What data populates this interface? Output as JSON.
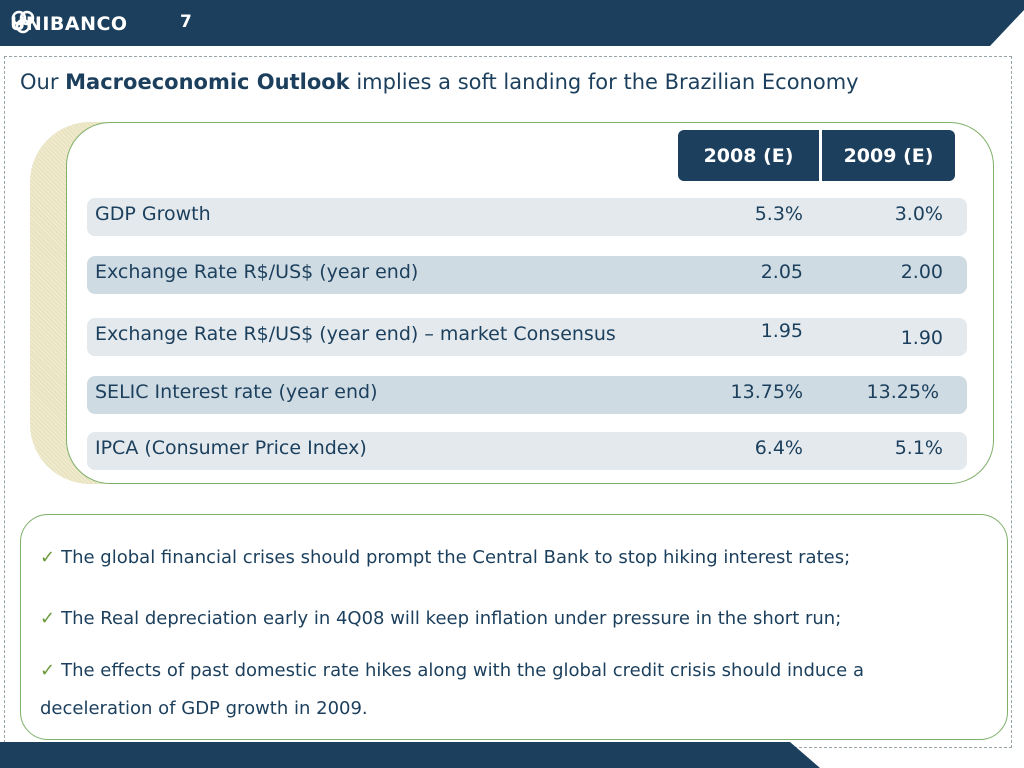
{
  "header": {
    "brand": "UNIBANCO",
    "page_number": "7",
    "color": "#1b3f5c"
  },
  "title": {
    "prefix": "Our ",
    "bold": "Macroeconomic Outlook",
    "suffix": " implies a soft landing for the Brazilian Economy"
  },
  "table": {
    "columns": [
      "2008 (E)",
      "2009 (E)"
    ],
    "rows": [
      {
        "label": "GDP Growth",
        "v2008": "5.3%",
        "v2009": "3.0%"
      },
      {
        "label": "Exchange Rate R$/US$ (year end)",
        "v2008": "2.05",
        "v2009": "2.00"
      },
      {
        "label": "Exchange Rate R$/US$ (year end) – market Consensus",
        "v2008": "1.95",
        "v2009": "1.90"
      },
      {
        "label": "SELIC Interest rate (year end)",
        "v2008": "13.75%",
        "v2009": "13.25%"
      },
      {
        "label": "IPCA (Consumer Price Index)",
        "v2008": "6.4%",
        "v2009": "5.1%"
      }
    ]
  },
  "bullets": [
    "The global financial crises should prompt the Central Bank to stop hiking interest rates;",
    "The Real depreciation early in 4Q08 will keep inflation under pressure in the short run;",
    "The effects of past domestic rate hikes along with the global credit crisis should induce a deceleration of GDP growth in 2009."
  ],
  "check_icon": "check-icon",
  "accent_green": "#7fb06a"
}
